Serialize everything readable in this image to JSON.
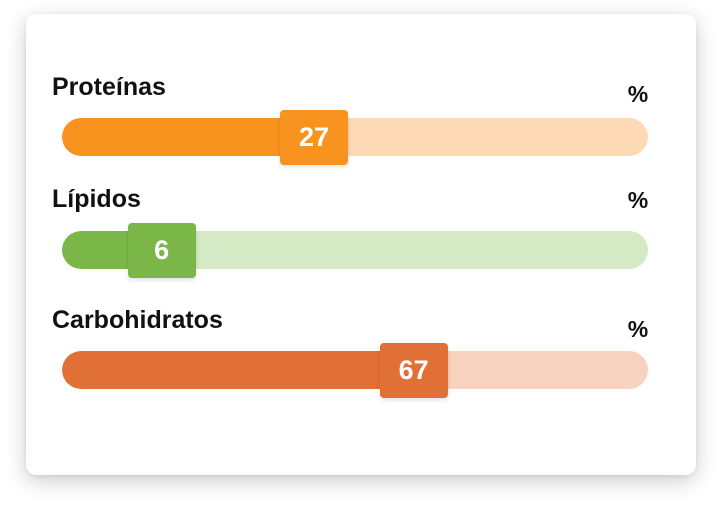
{
  "bars": [
    {
      "label": "Proteínas",
      "unit": "%",
      "value": "27",
      "percent": 0.43,
      "fill_color": "#f7931e",
      "track_color": "#fdd9b5"
    },
    {
      "label": "Lípidos",
      "unit": "%",
      "value": "6",
      "percent": 0.17,
      "fill_color": "#7ab648",
      "track_color": "#d5e9c4"
    },
    {
      "label": "Carbohidratos",
      "unit": "%",
      "value": "67",
      "percent": 0.6,
      "fill_color": "#e07035",
      "track_color": "#f6d2bf"
    }
  ]
}
